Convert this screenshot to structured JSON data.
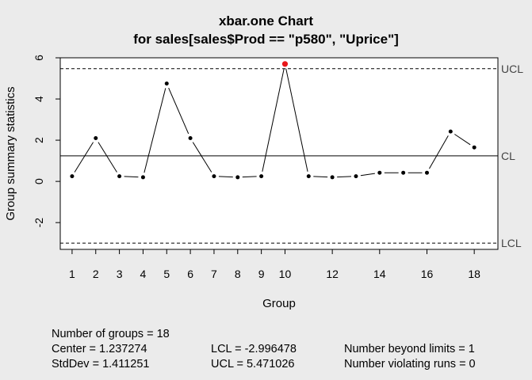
{
  "chart_data": {
    "type": "line",
    "title": "xbar.one Chart",
    "subtitle": "for sales[sales$Prod == \"p580\", \"Uprice\"]",
    "xlabel": "Group",
    "ylabel": "Group summary statistics",
    "x": [
      1,
      2,
      3,
      4,
      5,
      6,
      7,
      8,
      9,
      10,
      11,
      12,
      13,
      14,
      15,
      16,
      17,
      18
    ],
    "values": [
      0.25,
      2.1,
      0.25,
      0.2,
      4.75,
      2.1,
      0.25,
      0.2,
      0.25,
      5.7,
      0.25,
      0.2,
      0.25,
      0.42,
      0.42,
      0.42,
      2.42,
      1.65
    ],
    "xlim": [
      0.5,
      19.0
    ],
    "ylim": [
      -3.3,
      6.0
    ],
    "x_ticks": [
      1,
      2,
      3,
      4,
      5,
      6,
      7,
      8,
      9,
      10,
      12,
      14,
      16,
      18
    ],
    "y_ticks": [
      -2,
      0,
      2,
      4,
      6
    ],
    "center": 1.237274,
    "lcl": -2.996478,
    "ucl": 5.471026,
    "line_labels": {
      "ucl": "UCL",
      "cl": "CL",
      "lcl": "LCL"
    },
    "point_color": "#000000",
    "violation_color": "#e8161a",
    "grid": false
  },
  "stats": {
    "groups": "Number of groups = 18",
    "center": "Center = 1.237274",
    "stddev": "StdDev = 1.411251",
    "lcl": "LCL = -2.996478",
    "ucl": "UCL = 5.471026",
    "beyond": "Number beyond limits = 1",
    "runs": "Number violating runs = 0"
  }
}
